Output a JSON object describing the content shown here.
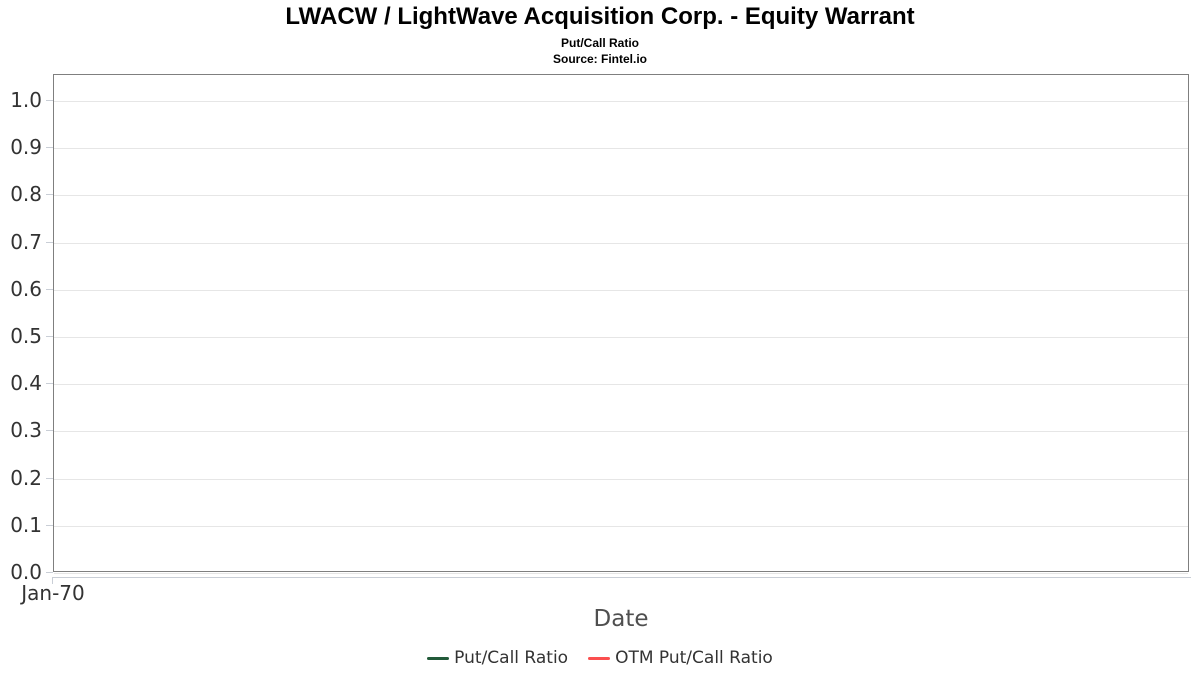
{
  "header": {
    "title": "LWACW / LightWave Acquisition Corp. - Equity Warrant",
    "subtitle": "Put/Call Ratio",
    "source": "Source: Fintel.io"
  },
  "chart_data": {
    "type": "line",
    "title": "LWACW / LightWave Acquisition Corp. - Equity Warrant",
    "subtitle": "Put/Call Ratio",
    "source": "Source: Fintel.io",
    "xlabel": "Date",
    "ylabel": "",
    "ylim": [
      0.0,
      1.0
    ],
    "yticks": [
      0.0,
      0.1,
      0.2,
      0.3,
      0.4,
      0.5,
      0.6,
      0.7,
      0.8,
      0.9,
      1.0
    ],
    "ytick_labels": [
      "0.0",
      "0.1",
      "0.2",
      "0.3",
      "0.4",
      "0.5",
      "0.6",
      "0.7",
      "0.8",
      "0.9",
      "1.0"
    ],
    "xtick_labels": [
      "Jan-70"
    ],
    "grid": true,
    "legend_position": "bottom",
    "series": [
      {
        "name": "Put/Call Ratio",
        "color": "#225a39",
        "x": [],
        "values": []
      },
      {
        "name": "OTM Put/Call Ratio",
        "color": "#fb4f4f",
        "x": [],
        "values": []
      }
    ],
    "colors": {
      "grid_line": "#e6e6e6",
      "plot_border": "#7f7f7f",
      "axis_line": "#c9ced6",
      "tick_label": "#333333",
      "axis_title": "#4f4f4f",
      "legend_text": "#333333"
    }
  }
}
